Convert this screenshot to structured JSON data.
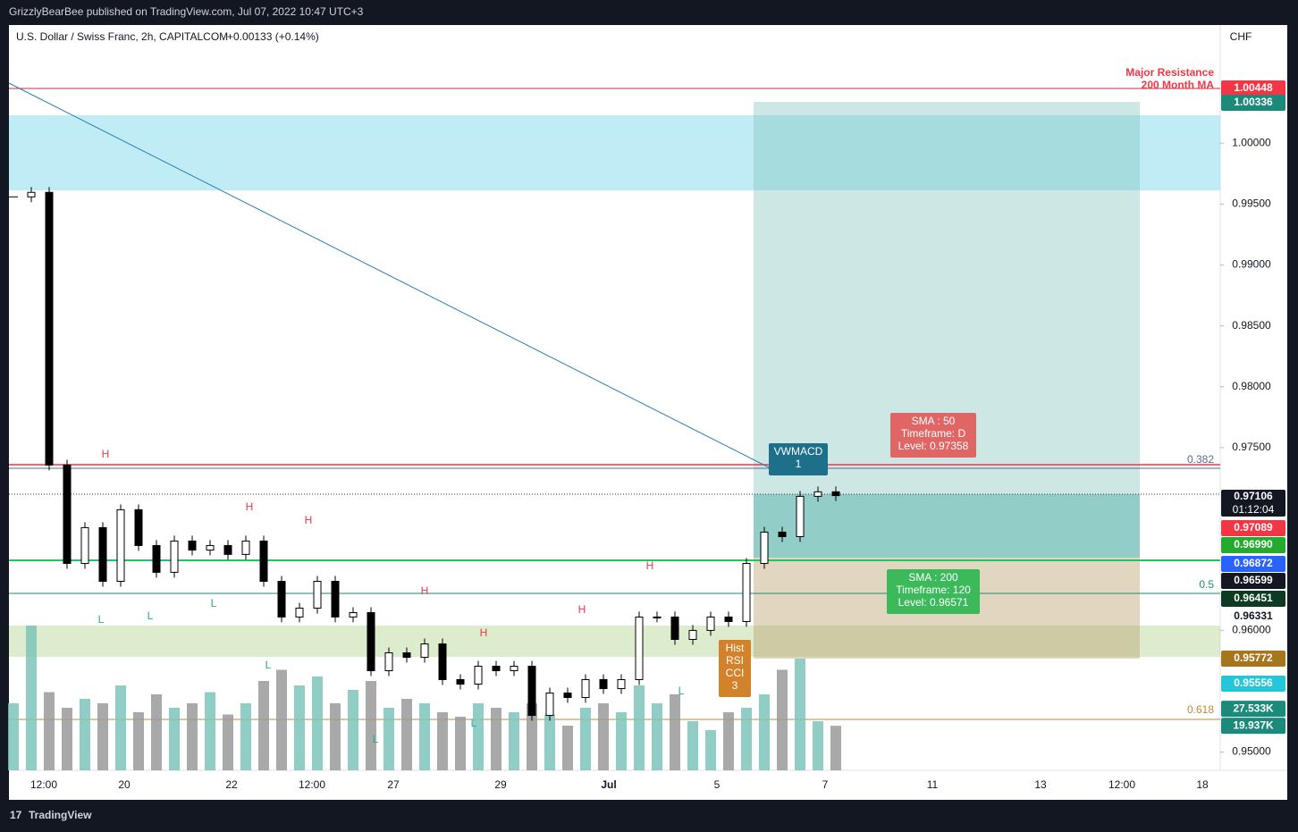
{
  "header": {
    "publisher": "GrizzlyBearBee published on TradingView.com, Jul 07, 2022 10:47 UTC+3",
    "footer": "TradingView"
  },
  "chart_data": {
    "type": "candlestick",
    "symbol": "U.S. Dollar / Swiss Franc, 2h, CAPITALCOM",
    "change": "+0.00133 (+0.14%)",
    "currency": "CHF",
    "ylim": [
      0.9485,
      1.0097
    ],
    "yticks": [
      {
        "value": 0.95,
        "label": "0.95000"
      },
      {
        "value": 0.96,
        "label": "0.96000"
      },
      {
        "value": 0.975,
        "label": "0.97500"
      },
      {
        "value": 0.98,
        "label": "0.98000"
      },
      {
        "value": 0.985,
        "label": "0.98500"
      },
      {
        "value": 0.99,
        "label": "0.99000"
      },
      {
        "value": 0.995,
        "label": "0.99500"
      },
      {
        "value": 1,
        "label": "1.00000"
      }
    ],
    "grid": false,
    "xticks": [
      "12:00",
      "20",
      "22",
      "12:00",
      "27",
      "29",
      "Jul",
      "5",
      "7",
      "11",
      "13",
      "12:00",
      "18"
    ],
    "close": [
      0.99559,
      0.99596,
      0.97357,
      0.96549,
      0.96843,
      0.96402,
      0.9699,
      0.96696,
      0.96476,
      0.96733,
      0.96659,
      0.96696,
      0.96623,
      0.96733,
      0.96402,
      0.96109,
      0.96182,
      0.96402,
      0.96109,
      0.96145,
      0.95668,
      0.95815,
      0.95778,
      0.95888,
      0.95595,
      0.95558,
      0.95705,
      0.95668,
      0.95705,
      0.95301,
      0.95485,
      0.95448,
      0.95595,
      0.95521,
      0.95595,
      0.96109,
      0.96109,
      0.95925,
      0.95999,
      0.96109,
      0.96072,
      0.96549,
      0.96806,
      0.96769,
      0.971,
      0.97137,
      0.97106
    ],
    "volume": [
      30000,
      64800,
      35000,
      28000,
      32000,
      30000,
      38000,
      26000,
      34000,
      28000,
      30000,
      35000,
      25000,
      30000,
      40000,
      45000,
      38000,
      42000,
      30000,
      36000,
      40000,
      28000,
      32000,
      30000,
      26000,
      24000,
      30000,
      28000,
      26000,
      30000,
      25000,
      20000,
      28000,
      30000,
      26000,
      38000,
      30000,
      34000,
      22000,
      18000,
      26000,
      28000,
      34000,
      45000,
      50000,
      22000,
      19937
    ],
    "up_color": "#ffffff",
    "down_color": "#000000",
    "volume_up_color": "#7cc4ba",
    "volume_down_color": "#9a9a9a",
    "price_labels": [
      {
        "value": 1.00448,
        "label": "1.00448",
        "color": "#f23645"
      },
      {
        "value": 1.00336,
        "label": "1.00336",
        "color": "#1b8a7a"
      },
      {
        "value": 0.97106,
        "label": "0.97106",
        "color": "#131722",
        "time": "01:12:04"
      },
      {
        "value": 0.97089,
        "label": "0.97089",
        "color": "#f23645"
      },
      {
        "value": 0.9699,
        "label": "0.96990",
        "color": "#22ab2c"
      },
      {
        "value": 0.96872,
        "label": "0.96872",
        "color": "#2962ff"
      },
      {
        "value": 0.96599,
        "label": "0.96599",
        "color": "#131722"
      },
      {
        "value": 0.96451,
        "label": "0.96451",
        "color": "#0d3b22"
      },
      {
        "value": 0.96331,
        "label": "0.96331",
        "color": "none"
      },
      {
        "value": 0.95772,
        "label": "0.95772",
        "color": "#a6761d"
      },
      {
        "value": 0.95556,
        "label": "0.95556",
        "color": "#26c6da"
      }
    ],
    "volume_labels": [
      {
        "value": 27533,
        "label": "27.533K",
        "color": "#1b8a7a"
      },
      {
        "value": 19937,
        "label": "19.937K",
        "color": "#1b8a7a"
      }
    ],
    "annotations": [
      {
        "lines": [
          "Major Resistance",
          "200 Month MA"
        ],
        "color": "#f23645"
      },
      {
        "lines": [
          "SMA : 50",
          "Timeframe: D",
          "Level: 0.97358"
        ],
        "color": "#e06666"
      },
      {
        "lines": [
          "VWMACD",
          "1"
        ],
        "color": "#1e6f8a"
      },
      {
        "lines": [
          "SMA : 200",
          "Timeframe: 120",
          "Level: 0.96571"
        ],
        "color": "#3cb95a"
      },
      {
        "lines": [
          "Hist",
          "RSI",
          "CCI",
          "3"
        ],
        "color": "#d2822a"
      }
    ],
    "fib_labels": [
      {
        "label": "0.382",
        "color": "#5a6a9a"
      },
      {
        "label": "0.5",
        "color": "#1b8a7a"
      },
      {
        "label": "0.618",
        "color": "#c08a3a"
      }
    ],
    "pivots": [
      {
        "text": "H",
        "color": "#f23645"
      },
      {
        "text": "H",
        "color": "#f23645"
      },
      {
        "text": "H",
        "color": "#f23645"
      },
      {
        "text": "H",
        "color": "#f23645"
      },
      {
        "text": "H",
        "color": "#f23645"
      },
      {
        "text": "H",
        "color": "#f23645"
      },
      {
        "text": "H",
        "color": "#f23645"
      },
      {
        "text": "L",
        "color": "#22ab94"
      },
      {
        "text": "L",
        "color": "#22ab94"
      },
      {
        "text": "L",
        "color": "#22ab94"
      },
      {
        "text": "L",
        "color": "#22ab94"
      },
      {
        "text": "L",
        "color": "#22ab94"
      },
      {
        "text": "L",
        "color": "#22ab94"
      },
      {
        "text": "L",
        "color": "#22ab94"
      }
    ]
  }
}
